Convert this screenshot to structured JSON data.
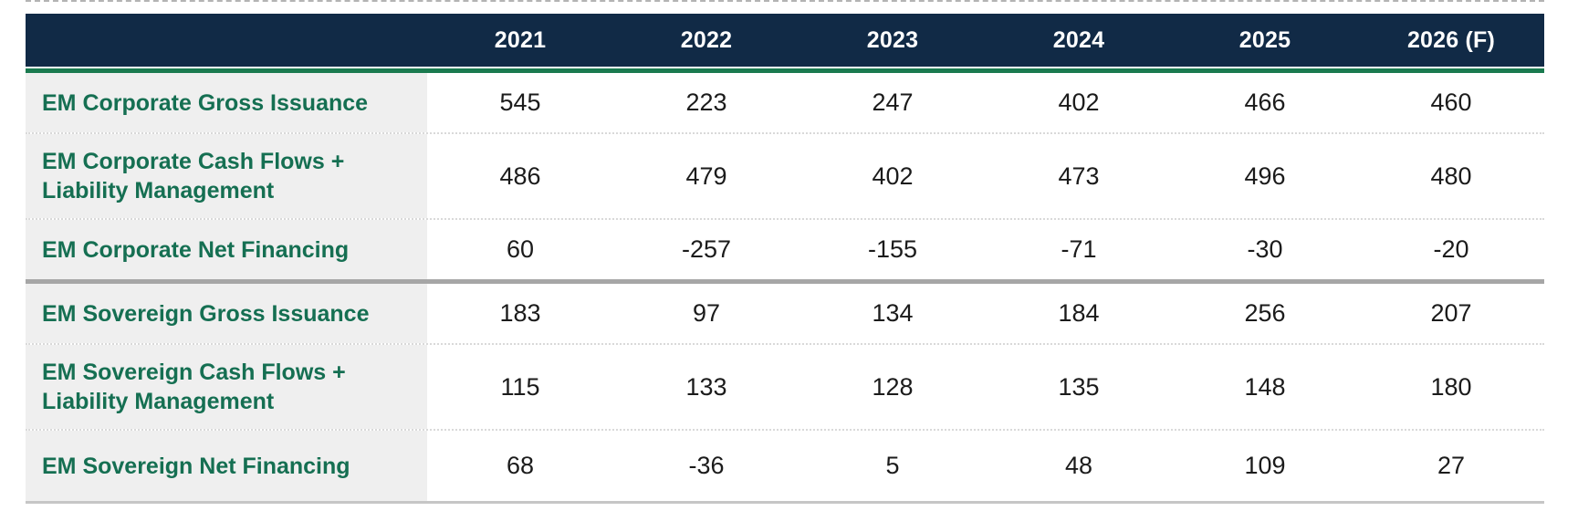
{
  "colors": {
    "header_navy": "#112a46",
    "accent_green": "#1a7a4f",
    "label_green": "#156f52",
    "label_bg": "#efefef",
    "section_divider_gray": "#a6a6a6"
  },
  "chart_data": {
    "type": "table",
    "columns": [
      "2021",
      "2022",
      "2023",
      "2024",
      "2025",
      "2026 (F)"
    ],
    "rows": [
      {
        "label": "EM Corporate Gross Issuance",
        "values": [
          545,
          223,
          247,
          402,
          466,
          460
        ]
      },
      {
        "label": "EM Corporate Cash Flows + Liability Management",
        "values": [
          486,
          479,
          402,
          473,
          496,
          480
        ]
      },
      {
        "label": "EM Corporate Net Financing",
        "values": [
          60,
          -257,
          -155,
          -71,
          -30,
          -20
        ]
      },
      {
        "label": "EM Sovereign Gross Issuance",
        "values": [
          183,
          97,
          134,
          184,
          256,
          207
        ]
      },
      {
        "label": "EM Sovereign Cash Flows + Liability Management",
        "values": [
          115,
          133,
          128,
          135,
          148,
          180
        ]
      },
      {
        "label": "EM Sovereign Net Financing",
        "values": [
          68,
          -36,
          5,
          48,
          109,
          27
        ]
      }
    ],
    "sections": {
      "corporate_row_indexes": [
        0,
        1,
        2
      ],
      "sovereign_row_indexes": [
        3,
        4,
        5
      ]
    },
    "layout": {
      "first_column_is_row_labels": true,
      "header_text_color": "#ffffff",
      "thick_divider_between_sections": true
    }
  }
}
